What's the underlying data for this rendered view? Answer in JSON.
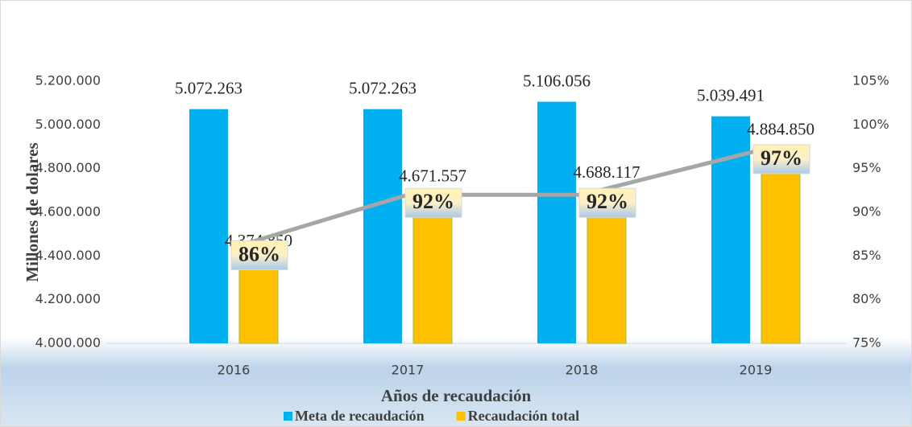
{
  "chart_data": {
    "type": "bar",
    "categories": [
      "2016",
      "2017",
      "2018",
      "2019"
    ],
    "y_label": "Millones de dolares",
    "x_label": "Años de recaudación",
    "ylim": [
      4000000,
      5200000
    ],
    "yticks": [
      {
        "value": 4000000,
        "label": "4.000.000"
      },
      {
        "value": 4200000,
        "label": "4.200.000"
      },
      {
        "value": 4400000,
        "label": "4.400.000"
      },
      {
        "value": 4600000,
        "label": "4.600.000"
      },
      {
        "value": 4800000,
        "label": "4.800.000"
      },
      {
        "value": 5000000,
        "label": "5.000.000"
      },
      {
        "value": 5200000,
        "label": "5.200.000"
      }
    ],
    "y2lim": [
      75,
      105
    ],
    "y2ticks": [
      {
        "value": 75,
        "label": "75%"
      },
      {
        "value": 80,
        "label": "80%"
      },
      {
        "value": 85,
        "label": "85%"
      },
      {
        "value": 90,
        "label": "90%"
      },
      {
        "value": 95,
        "label": "95%"
      },
      {
        "value": 100,
        "label": "100%"
      },
      {
        "value": 105,
        "label": "105%"
      }
    ],
    "series": [
      {
        "name": "Meta de recaudación",
        "type": "bar",
        "color": "#00b0f0",
        "values": [
          5072263,
          5072263,
          5106056,
          5039491
        ],
        "value_labels": [
          "5.072.263",
          "5.072.263",
          "5.106.056",
          "5.039.491"
        ]
      },
      {
        "name": "Recaudación total",
        "type": "bar",
        "color": "#ffc000",
        "values": [
          4374850,
          4671557,
          4688117,
          4884850
        ],
        "value_labels": [
          "4.374.850",
          "4.671.557",
          "4.688.117",
          "4.884.850"
        ]
      },
      {
        "type": "line",
        "axis": "y2",
        "color": "#a6a6a6",
        "values": [
          86,
          92,
          92,
          97
        ],
        "value_labels": [
          "86%",
          "92%",
          "92%",
          "97%"
        ]
      }
    ]
  }
}
